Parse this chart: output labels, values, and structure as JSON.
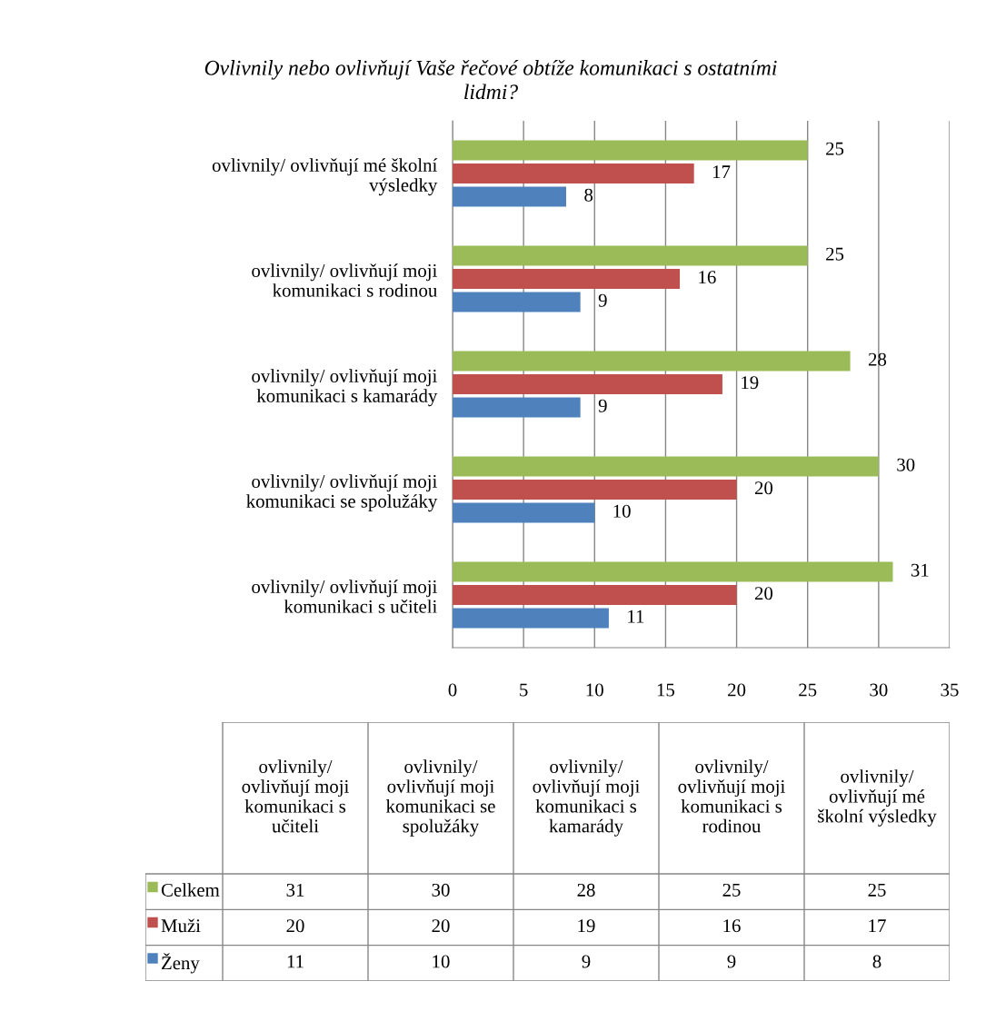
{
  "chart_data": [
    {
      "type": "bar",
      "orientation": "horizontal",
      "title": "Ovlivnily nebo ovlivňují Vaše řečové obtíže komunikaci s ostatními lidmi?",
      "categories": [
        "ovlivnily/ ovlivňují mé školní výsledky",
        "ovlivnily/ ovlivňují moji komunikaci s rodinou",
        "ovlivnily/ ovlivňují moji komunikaci s kamarády",
        "ovlivnily/ ovlivňují moji komunikaci se spolužáky",
        "ovlivnily/ ovlivňují moji komunikaci s učiteli"
      ],
      "series": [
        {
          "name": "Celkem",
          "color": "#9bbb59",
          "values": [
            25,
            25,
            28,
            30,
            31
          ]
        },
        {
          "name": "Muži",
          "color": "#c0504d",
          "values": [
            17,
            16,
            19,
            20,
            20
          ]
        },
        {
          "name": "Ženy",
          "color": "#4f81bd",
          "values": [
            8,
            9,
            9,
            10,
            11
          ]
        }
      ],
      "xlim": [
        0,
        35
      ],
      "xticks": [
        0,
        5,
        10,
        15,
        20,
        25,
        30,
        35
      ],
      "grid": "x",
      "legend": "bottom",
      "data_labels": true
    },
    {
      "type": "other",
      "data_labels": true,
      "categories": [
        "ovlivnily/ ovlivňují moji komunikaci s učiteli",
        "ovlivnily/ ovlivňují moji komunikaci se spolužáky",
        "ovlivnily/ ovlivňují moji komunikaci s kamarády",
        "ovlivnily/ ovlivňují moji komunikaci s rodinou",
        "ovlivnily/ ovlivňují mé školní výsledky"
      ],
      "series": [
        {
          "values": [
            31,
            30,
            28,
            25,
            25
          ]
        },
        {
          "values": [
            20,
            20,
            19,
            16,
            17
          ]
        },
        {
          "values": [
            11,
            10,
            9,
            9,
            8
          ]
        }
      ]
    }
  ]
}
